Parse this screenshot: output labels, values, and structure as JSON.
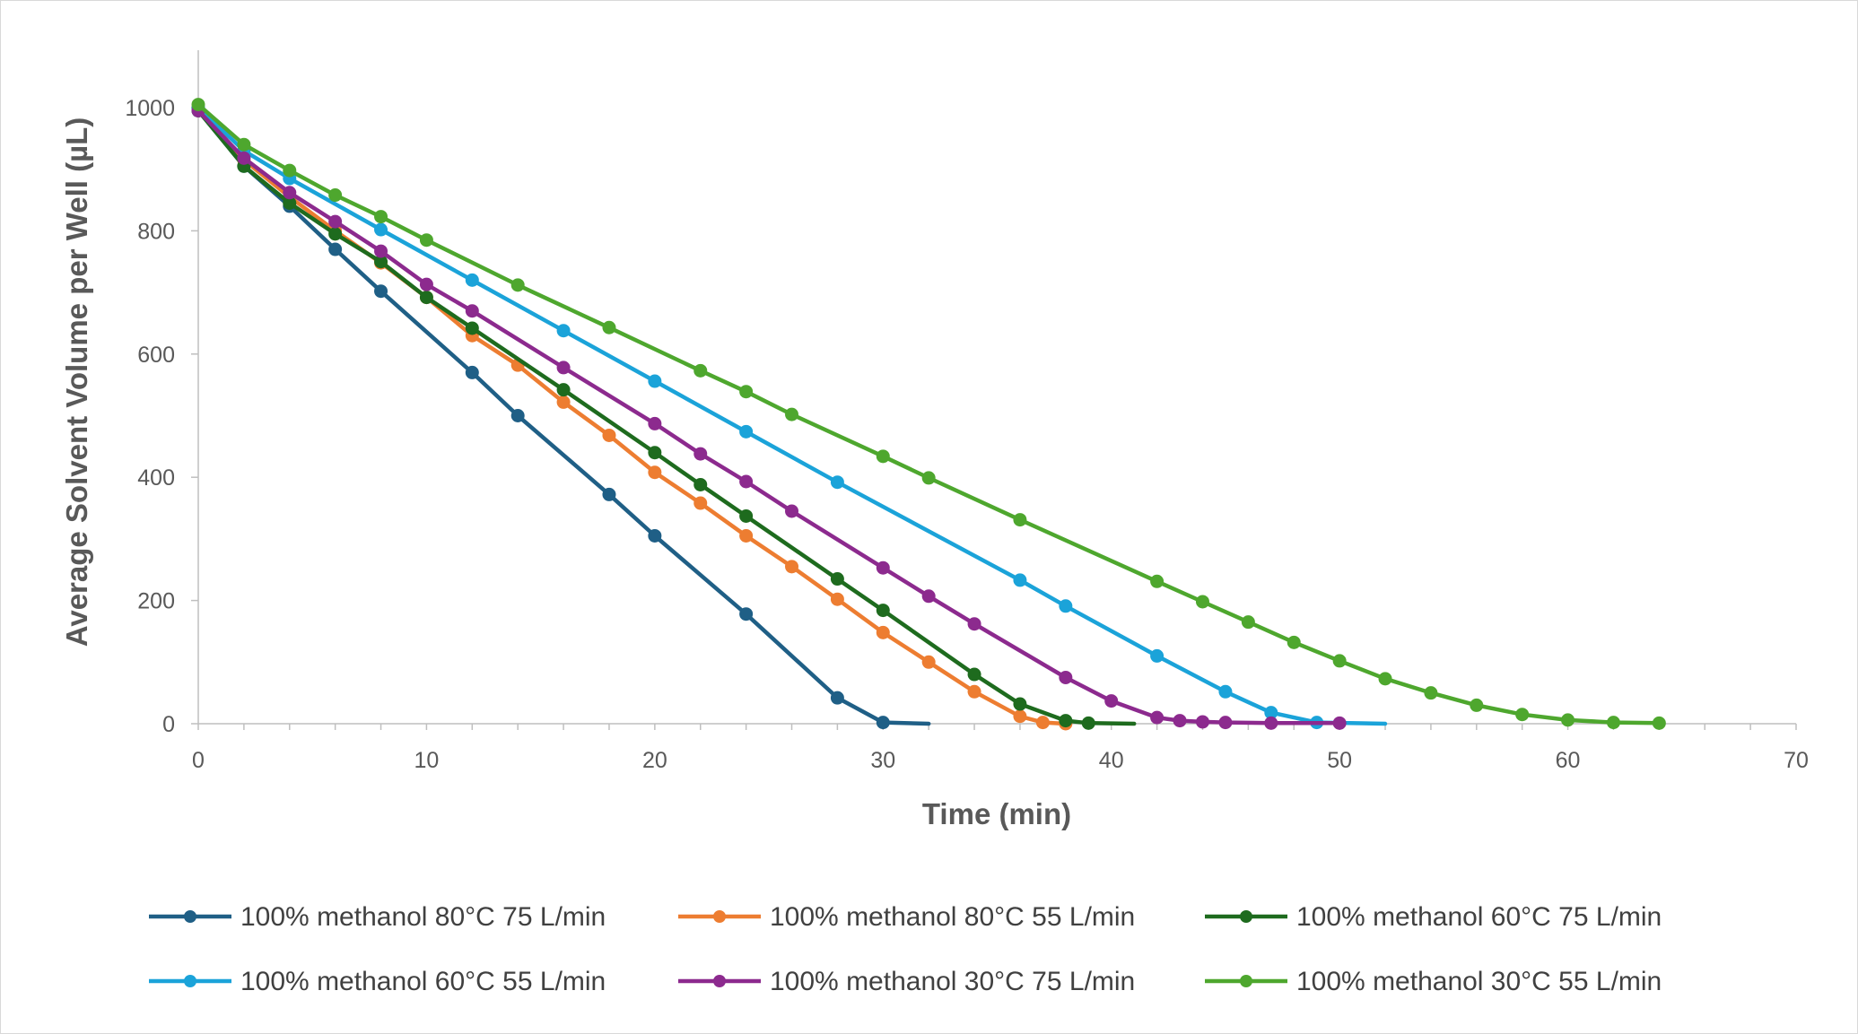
{
  "chart_data": {
    "type": "line",
    "title": "",
    "xlabel": "Time (min)",
    "ylabel": "Average Solvent Volume per Well (µL)",
    "xlim": [
      0,
      70
    ],
    "ylim": [
      0,
      1100
    ],
    "xticks": [
      0,
      10,
      20,
      30,
      40,
      50,
      60,
      70
    ],
    "yticks": [
      0,
      200,
      400,
      600,
      800,
      1000
    ],
    "grid": false,
    "legend_position": "bottom",
    "series": [
      {
        "name": "100% methanol 80°C 75 L/min",
        "color": "#1f5f86",
        "x": [
          0,
          2,
          4,
          6,
          8,
          12,
          14,
          18,
          20,
          24,
          28,
          30,
          32
        ],
        "y": [
          995,
          905,
          840,
          770,
          702,
          570,
          500,
          372,
          305,
          178,
          42,
          2,
          0
        ],
        "markers": [
          true,
          true,
          true,
          true,
          true,
          true,
          true,
          true,
          true,
          true,
          true,
          true,
          false
        ]
      },
      {
        "name": "100% methanol 80°C 55 L/min",
        "color": "#ed7d31",
        "x": [
          0,
          2,
          4,
          6,
          8,
          10,
          12,
          14,
          16,
          18,
          20,
          22,
          24,
          26,
          28,
          30,
          32,
          34,
          36,
          37,
          38
        ],
        "y": [
          1000,
          915,
          855,
          800,
          748,
          692,
          630,
          582,
          522,
          468,
          408,
          358,
          305,
          255,
          202,
          148,
          100,
          52,
          12,
          2,
          0
        ],
        "markers": [
          true,
          true,
          true,
          true,
          true,
          true,
          true,
          true,
          true,
          true,
          true,
          true,
          true,
          true,
          true,
          true,
          true,
          true,
          true,
          true,
          true
        ]
      },
      {
        "name": "100% methanol 60°C 75 L/min",
        "color": "#1e6b1e",
        "x": [
          0,
          2,
          4,
          6,
          8,
          10,
          12,
          16,
          20,
          22,
          24,
          28,
          30,
          34,
          36,
          38,
          39,
          41
        ],
        "y": [
          995,
          905,
          845,
          795,
          750,
          692,
          642,
          542,
          440,
          388,
          337,
          235,
          184,
          80,
          32,
          5,
          1,
          0
        ],
        "markers": [
          true,
          true,
          true,
          true,
          true,
          true,
          true,
          true,
          true,
          true,
          true,
          true,
          true,
          true,
          true,
          true,
          true,
          false
        ]
      },
      {
        "name": "100% methanol 60°C 55 L/min",
        "color": "#1ba3d9",
        "x": [
          0,
          2,
          4,
          8,
          12,
          16,
          20,
          24,
          28,
          36,
          38,
          42,
          45,
          47,
          49,
          52
        ],
        "y": [
          1000,
          930,
          885,
          802,
          720,
          638,
          556,
          474,
          392,
          233,
          191,
          110,
          52,
          18,
          2,
          0
        ],
        "markers": [
          true,
          true,
          true,
          true,
          true,
          true,
          true,
          true,
          true,
          true,
          true,
          true,
          true,
          true,
          true,
          false
        ]
      },
      {
        "name": "100% methanol 30°C 75 L/min",
        "color": "#8c2a8e",
        "x": [
          0,
          2,
          4,
          6,
          8,
          10,
          12,
          16,
          20,
          22,
          24,
          26,
          30,
          32,
          34,
          38,
          40,
          42,
          43,
          44,
          45,
          47,
          50
        ],
        "y": [
          995,
          918,
          862,
          815,
          767,
          713,
          670,
          578,
          487,
          438,
          393,
          345,
          253,
          207,
          162,
          75,
          37,
          10,
          5,
          3,
          2,
          1,
          1
        ],
        "markers": [
          true,
          true,
          true,
          true,
          true,
          true,
          true,
          true,
          true,
          true,
          true,
          true,
          true,
          true,
          true,
          true,
          true,
          true,
          true,
          true,
          true,
          true,
          true
        ]
      },
      {
        "name": "100% methanol 30°C 55 L/min",
        "color": "#4ea72e",
        "x": [
          0,
          2,
          4,
          6,
          8,
          10,
          14,
          18,
          22,
          24,
          26,
          30,
          32,
          36,
          42,
          44,
          46,
          48,
          50,
          52,
          54,
          56,
          58,
          60,
          62,
          64
        ],
        "y": [
          1005,
          940,
          898,
          858,
          823,
          785,
          712,
          643,
          573,
          539,
          502,
          434,
          399,
          331,
          231,
          198,
          165,
          132,
          102,
          73,
          50,
          30,
          15,
          6,
          2,
          1
        ],
        "markers": [
          true,
          true,
          true,
          true,
          true,
          true,
          true,
          true,
          true,
          true,
          true,
          true,
          true,
          true,
          true,
          true,
          true,
          true,
          true,
          true,
          true,
          true,
          true,
          true,
          true,
          true
        ]
      }
    ]
  }
}
